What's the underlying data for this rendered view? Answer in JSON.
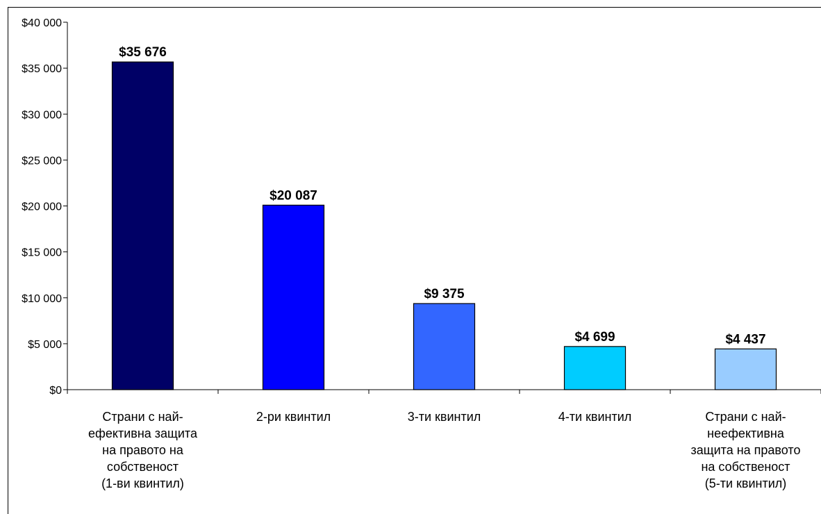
{
  "chart_data": {
    "type": "bar",
    "title": "",
    "xlabel": "",
    "ylabel": "",
    "categories": [
      "Страни с най-\nефективна защита\nна правото на\nсобственост\n(1-ви квинтил)",
      "2-ри квинтил",
      "3-ти квинтил",
      "4-ти квинтил",
      "Страни с най-\nнеефективна\nзащита на правото\nна собственост\n(5-ти квинтил)"
    ],
    "values": [
      35676,
      20087,
      9375,
      4699,
      4437
    ],
    "value_labels": [
      "$35 676",
      "$20 087",
      "$9 375",
      "$4 699",
      "$4 437"
    ],
    "colors": [
      "#000066",
      "#0000FF",
      "#3366FF",
      "#00CCFF",
      "#99CCFF"
    ],
    "ylim": [
      0,
      40000
    ],
    "y_ticks": [
      0,
      5000,
      10000,
      15000,
      20000,
      25000,
      30000,
      35000,
      40000
    ],
    "y_tick_labels": [
      "$0",
      "$5 000",
      "$10 000",
      "$15 000",
      "$20 000",
      "$25 000",
      "$30 000",
      "$35 000",
      "$40 000"
    ],
    "grid": false,
    "legend": "none"
  }
}
